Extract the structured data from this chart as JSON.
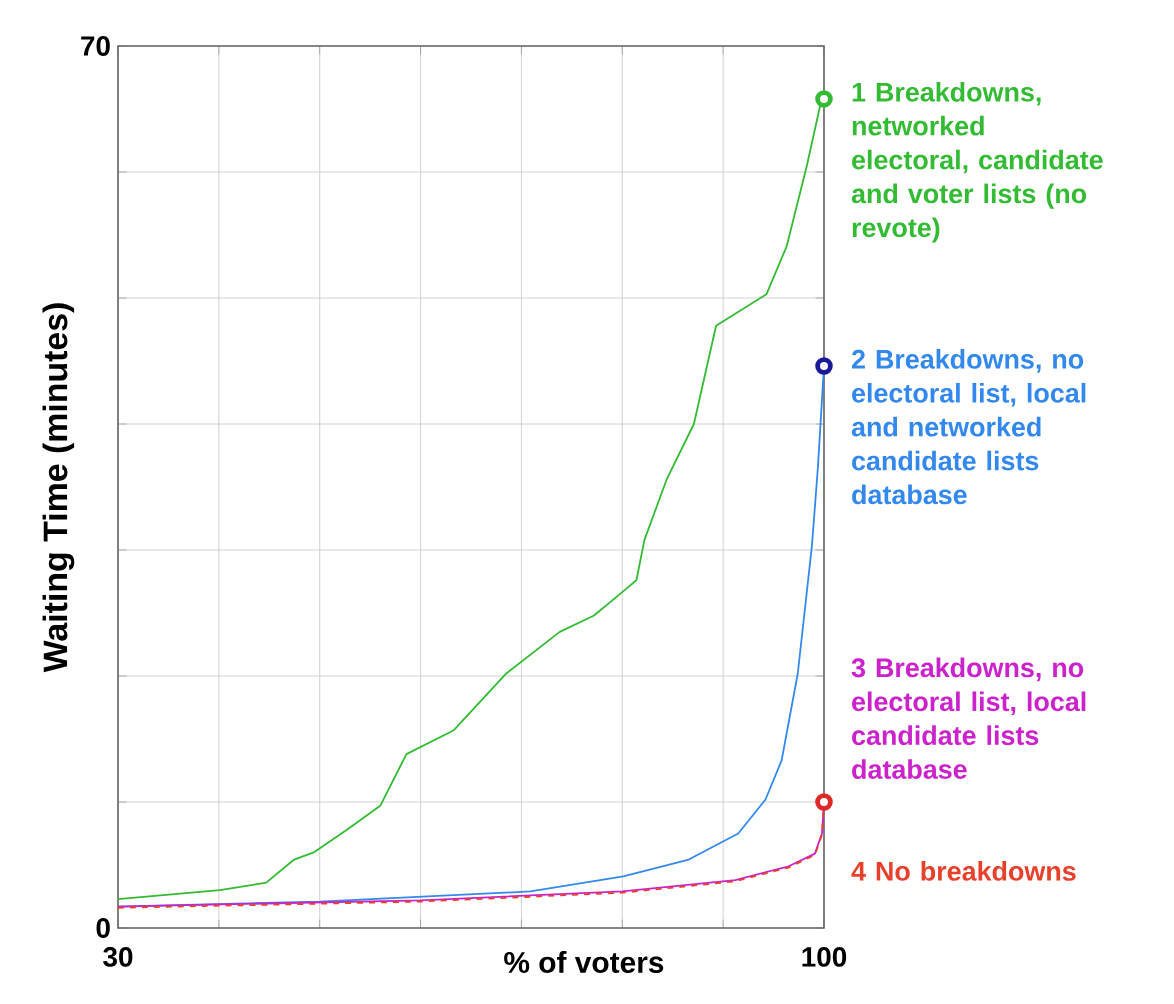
{
  "chart_data": {
    "type": "line",
    "xlabel": "% of voters",
    "ylabel": "Waiting Time (minutes)",
    "xlim": [
      30,
      100
    ],
    "ylim": [
      0,
      70
    ],
    "xticks": [
      30,
      {
        "value": 40,
        "label": null
      },
      {
        "value": 50,
        "label": null
      },
      {
        "value": 60,
        "label": null
      },
      {
        "value": 70,
        "label": null
      },
      {
        "value": 80,
        "label": null
      },
      {
        "value": 90,
        "label": null
      },
      100
    ],
    "yticks": [
      0,
      {
        "value": 10,
        "label": null
      },
      {
        "value": 20,
        "label": null
      },
      {
        "value": 30,
        "label": null
      },
      {
        "value": 40,
        "label": null
      },
      {
        "value": 50,
        "label": null
      },
      {
        "value": 60,
        "label": null
      },
      70
    ],
    "grid": true,
    "series": [
      {
        "name": "1 Breakdowns, networked electoral, candidate and voter lists (no revote)",
        "color": "#33bb33",
        "line_style": "solid",
        "x": [
          30,
          40.1,
          44.7,
          47.4,
          49.4,
          52.7,
          56,
          58.6,
          63.3,
          68.5,
          73.8,
          77.2,
          80.2,
          81.4,
          82.2,
          84.4,
          87.1,
          89.3,
          94.3,
          96.3,
          98.3,
          99.6,
          100
        ],
        "values": [
          2.3,
          3.0,
          3.6,
          5.4,
          6.0,
          7.8,
          9.7,
          13.8,
          15.7,
          20.2,
          23.5,
          24.8,
          26.8,
          27.6,
          30.8,
          35.6,
          40,
          47.8,
          50.3,
          54.1,
          60.5,
          65.2,
          65.8
        ]
      },
      {
        "name": "2 Breakdowns, no electoral list, local and networked candidate lists database",
        "color": "#3388ee",
        "line_style": "solid",
        "x": [
          30,
          50,
          70.9,
          80.1,
          86.5,
          91.5,
          94.2,
          95.8,
          97.4,
          98.8,
          99.4,
          100
        ],
        "values": [
          1.7,
          2.1,
          2.9,
          4.1,
          5.4,
          7.5,
          10.2,
          13.3,
          20.2,
          30.3,
          36.6,
          44.6
        ]
      },
      {
        "name": "3 Breakdowns, no electoral list, local candidate lists database",
        "color": "#cc22cc",
        "line_style": "solid",
        "x": [
          30,
          60,
          80,
          91.2,
          96.5,
          99.1,
          99.8,
          100
        ],
        "values": [
          1.7,
          2.2,
          2.9,
          3.8,
          4.9,
          5.9,
          7.5,
          10
        ]
      },
      {
        "name": "4 No breakdowns",
        "color": "#e8402a",
        "line_style": "dashed",
        "x": [
          30,
          60,
          80,
          91.2,
          96.5,
          99.1,
          99.8,
          100
        ],
        "values": [
          1.6,
          2.1,
          2.8,
          3.7,
          4.8,
          5.8,
          7.4,
          10
        ]
      },
      {
        "type": "scatter",
        "marker": "circle",
        "colors": [
          "#33bb33",
          "#1a1a99",
          "#e02828"
        ],
        "x": [
          100,
          100,
          100
        ],
        "values": [
          65.8,
          44.6,
          10
        ]
      }
    ]
  }
}
